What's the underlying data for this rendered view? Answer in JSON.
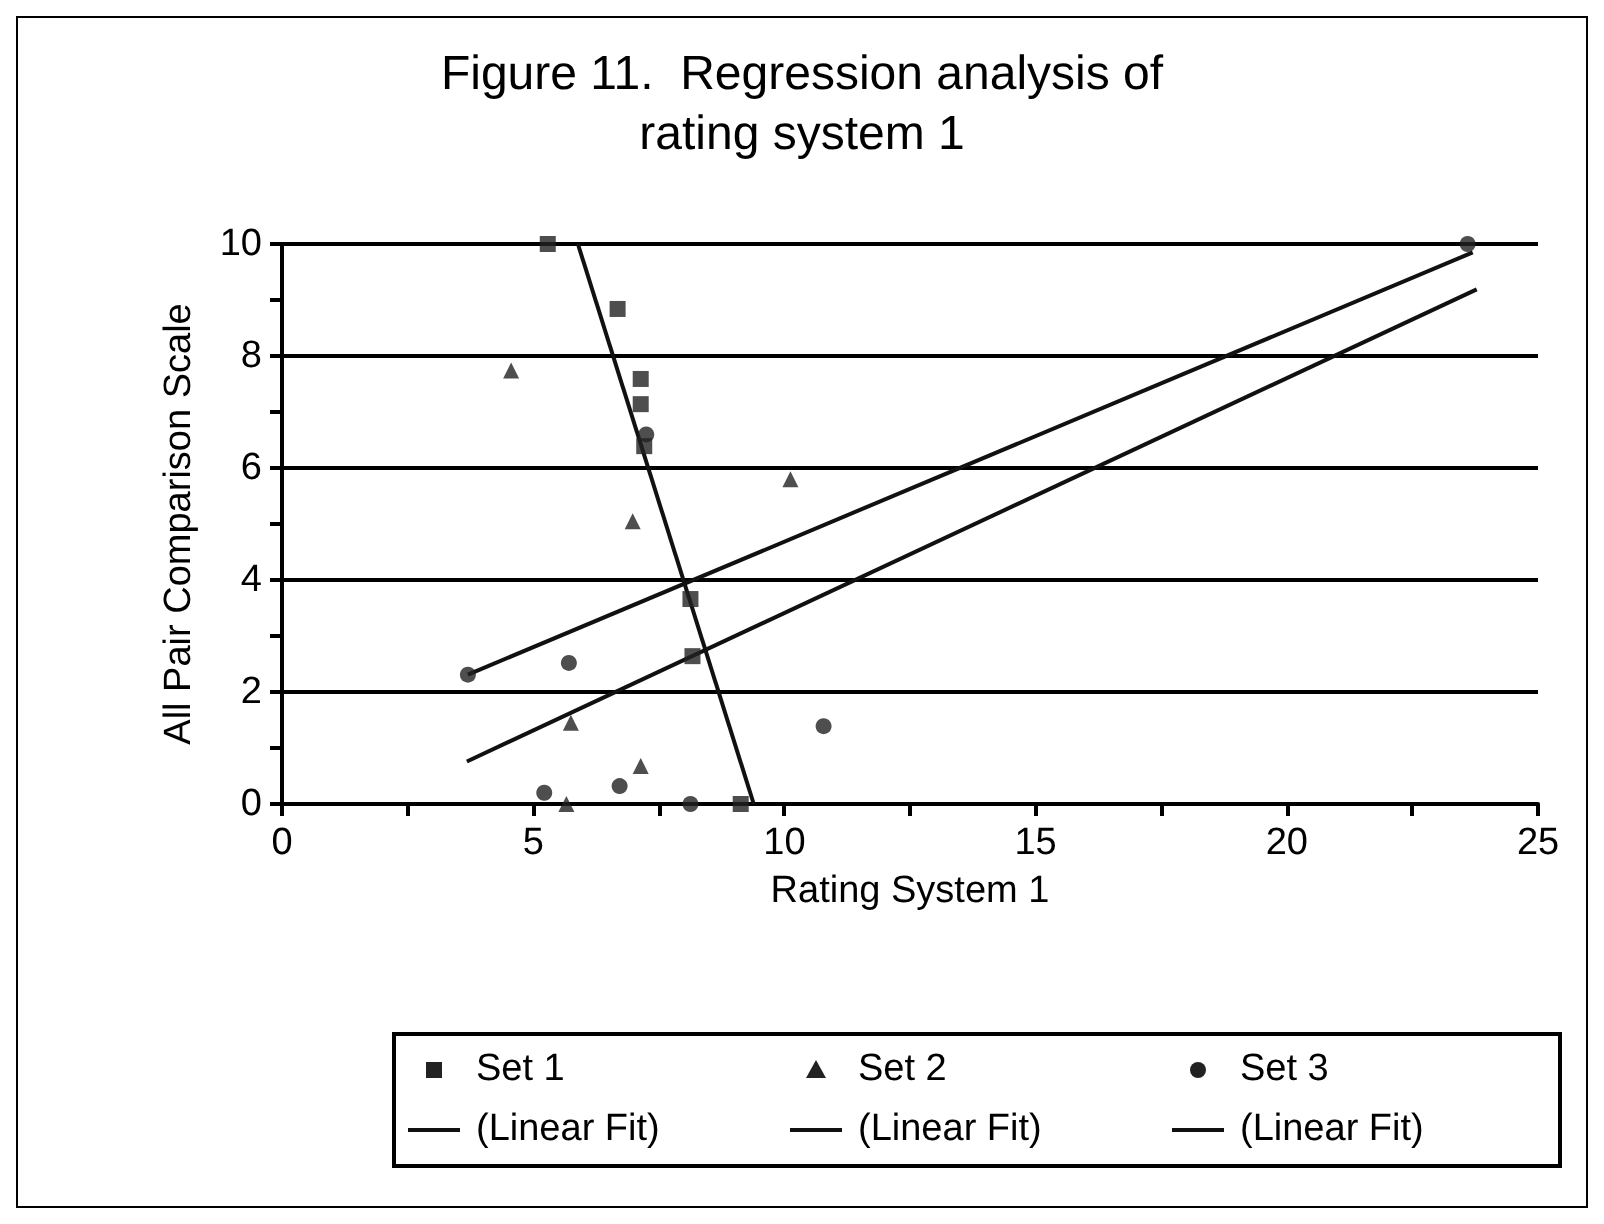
{
  "chart_data": {
    "type": "scatter",
    "title": "Figure 11.  Regression analysis of\nrating system 1",
    "xlabel": "Rating System 1",
    "ylabel": "All Pair Comparison Scale",
    "xlim": [
      0,
      25
    ],
    "xticks": [
      0,
      {
        "value": 2.5,
        "label": null
      },
      5,
      {
        "value": 7.5,
        "label": null
      },
      10,
      {
        "value": 12.5,
        "label": null
      },
      15,
      {
        "value": 17.5,
        "label": null
      },
      20,
      {
        "value": 22.5,
        "label": null
      },
      25
    ],
    "ylim": [
      0,
      10
    ],
    "yticks": [
      0,
      {
        "value": 1,
        "label": null
      },
      2,
      {
        "value": 3,
        "label": null
      },
      4,
      {
        "value": 5,
        "label": null
      },
      6,
      {
        "value": 7,
        "label": null
      },
      8,
      {
        "value": 9,
        "label": null
      },
      10
    ],
    "grid": "y",
    "legend": "bottom",
    "series": [
      {
        "name": "Set 1",
        "marker": "square",
        "color": "#222222",
        "x": [
          5.29,
          6.68,
          7.14,
          7.14,
          7.21,
          8.13,
          8.17,
          9.13
        ],
        "values": [
          10,
          8.84,
          7.59,
          7.14,
          6.39,
          3.66,
          2.64,
          0
        ]
      },
      {
        "name": "Set 2",
        "marker": "triangle",
        "color": "#222222",
        "x": [
          4.56,
          6.98,
          10.12,
          5.75,
          7.14,
          5.66
        ],
        "values": [
          7.74,
          5.05,
          5.8,
          1.45,
          0.68,
          0
        ]
      },
      {
        "name": "Set 3",
        "marker": "circle",
        "color": "#222222",
        "x": [
          3.7,
          5.71,
          7.25,
          10.78,
          5.22,
          6.72,
          8.13,
          23.6
        ],
        "values": [
          2.31,
          2.52,
          6.6,
          1.39,
          0.2,
          0.32,
          0,
          10
        ]
      },
      {
        "name": "(Linear Fit)",
        "type": "line",
        "marker": "none",
        "color": "#111111",
        "x": [
          5.89,
          9.39
        ],
        "values": [
          10,
          0
        ]
      },
      {
        "name": "(Linear Fit)",
        "type": "line",
        "marker": "none",
        "color": "#111111",
        "x": [
          3.7,
          23.7
        ],
        "values": [
          2.31,
          9.85
        ]
      },
      {
        "name": "(Linear Fit)",
        "type": "line",
        "marker": "none",
        "color": "#111111",
        "x": [
          3.68,
          23.78
        ],
        "values": [
          0.76,
          9.19
        ]
      }
    ]
  }
}
